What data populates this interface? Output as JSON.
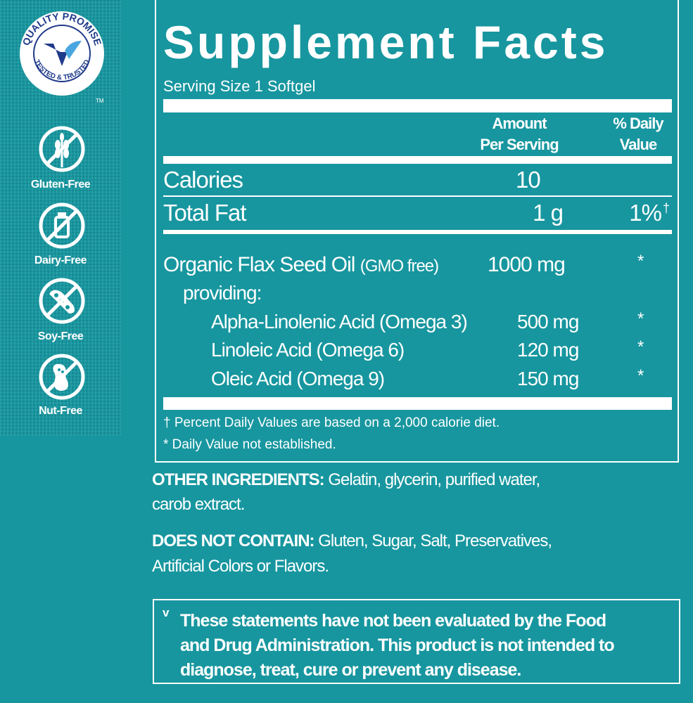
{
  "badges": {
    "quality_promise": {
      "top_text": "QUALITY PROMISE",
      "bottom_text": "TESTED & TRUSTED",
      "trademark": "TM",
      "icon": "v-checkmark-seal-icon"
    },
    "free_from": [
      {
        "label": "Gluten-Free",
        "icon": "no-wheat-icon"
      },
      {
        "label": "Dairy-Free",
        "icon": "no-milk-bottle-icon"
      },
      {
        "label": "Soy-Free",
        "icon": "no-soybean-icon"
      },
      {
        "label": "Nut-Free",
        "icon": "no-peanut-icon"
      }
    ]
  },
  "facts": {
    "title": "Supplement Facts",
    "serving_size": "Serving Size 1 Softgel",
    "header_amount": [
      "Amount",
      "Per Serving"
    ],
    "header_dv": [
      "% Daily",
      "Value"
    ],
    "calories": {
      "label": "Calories",
      "amount": "10"
    },
    "total_fat": {
      "label": "Total Fat",
      "amount": "1 g",
      "dv": "1%",
      "dv_mark": "†"
    },
    "flax": {
      "label": "Organic Flax Seed Oil",
      "note": "(GMO free)",
      "amount": "1000 mg",
      "dv": "*"
    },
    "providing": "providing:",
    "sub_items": [
      {
        "label": "Alpha-Linolenic Acid (Omega 3)",
        "amount": "500 mg",
        "dv": "*"
      },
      {
        "label": "Linoleic Acid (Omega 6)",
        "amount": "120 mg",
        "dv": "*"
      },
      {
        "label": "Oleic Acid (Omega 9)",
        "amount": "150 mg",
        "dv": "*"
      }
    ],
    "footnote_1": "† Percent Daily Values are based on a 2,000 calorie diet.",
    "footnote_2": "* Daily Value not established."
  },
  "other_ingredients": {
    "label": "OTHER INGREDIENTS:",
    "line1": " Gelatin, glycerin, purified water,",
    "line2": "carob extract."
  },
  "does_not_contain": {
    "label": "DOES NOT CONTAIN:",
    "line1": " Gluten, Sugar, Salt, Preservatives,",
    "line2": "Artificial Colors or Flavors."
  },
  "disclaimer": {
    "mark": "v",
    "lines": [
      "These statements have not been evaluated by the Food",
      "and Drug Administration. This product is not intended to",
      "diagnose, treat, cure or prevent any disease."
    ]
  },
  "colors": {
    "background": "#17969f",
    "text": "#ffffff",
    "seal_blue": "#1f3a8a",
    "seal_light_blue": "#4aa6e0"
  }
}
